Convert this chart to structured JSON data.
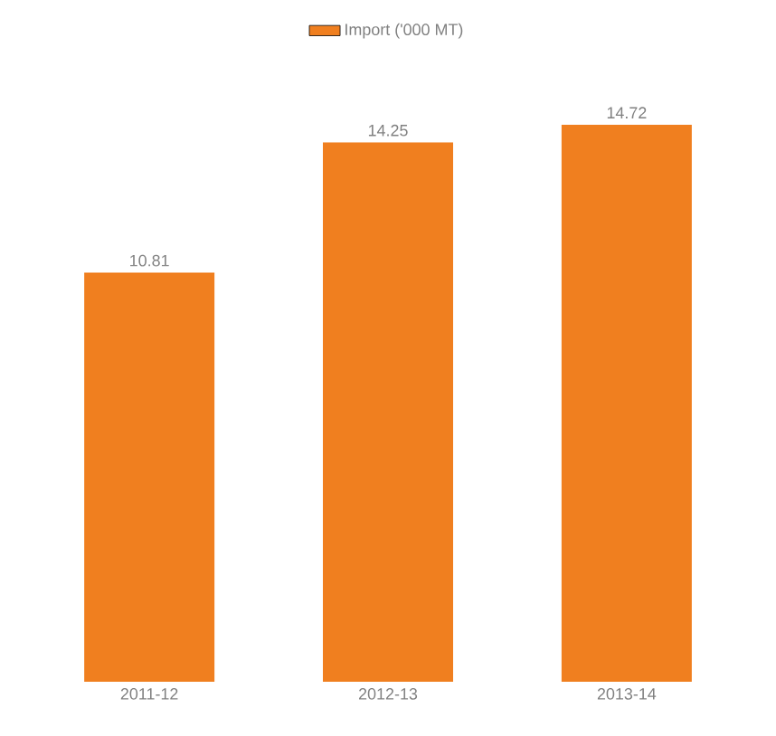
{
  "chart_data": {
    "type": "bar",
    "categories": [
      "2011-12",
      "2012-13",
      "2013-14"
    ],
    "series": [
      {
        "name": "Import ('000 MT)",
        "color": "#f07f1f",
        "values": [
          10.81,
          14.25,
          14.72
        ]
      }
    ],
    "data_labels": true,
    "legend": "top"
  }
}
